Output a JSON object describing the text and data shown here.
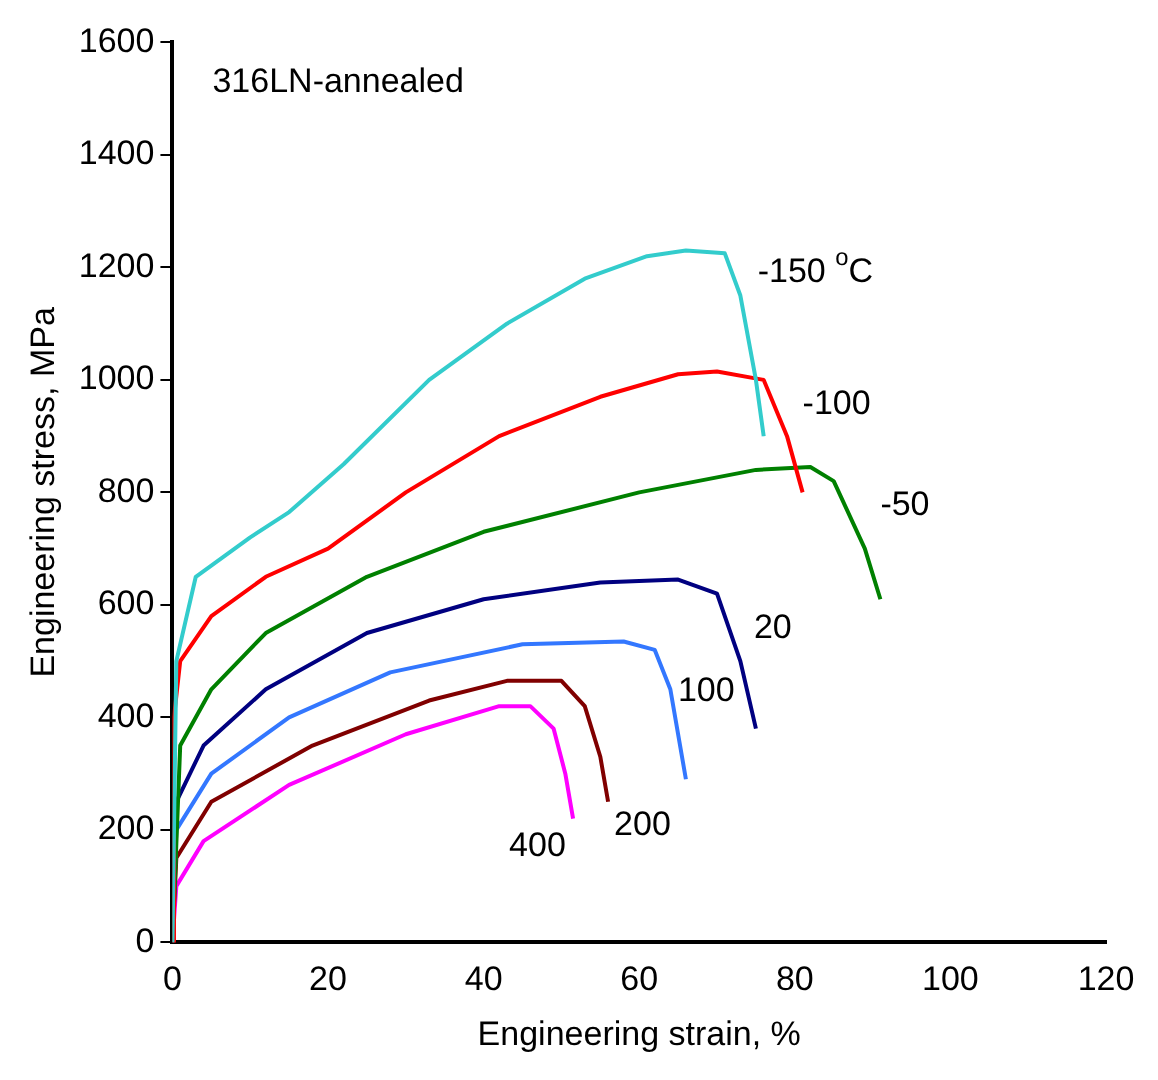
{
  "chart_data": {
    "type": "line",
    "xlabel": "Engineering strain, %",
    "ylabel": "Engineering stress, MPa",
    "xlim": [
      0,
      120
    ],
    "xticks": [
      0,
      20,
      40,
      60,
      80,
      100,
      120
    ],
    "ylim": [
      0,
      1600
    ],
    "yticks": [
      0,
      200,
      400,
      600,
      800,
      1000,
      1200,
      1400,
      1600
    ],
    "grid": false,
    "legend": false,
    "marker": "none",
    "line_style": "solid",
    "series": [
      {
        "name": "-150 $^{o}$C",
        "color": "#33cccc",
        "x": [
          0,
          0.5,
          3,
          10,
          15,
          22,
          33,
          43,
          53,
          61,
          66,
          71,
          73,
          75,
          76
        ],
        "values": [
          0,
          500,
          650,
          720,
          765,
          850,
          1000,
          1100,
          1180,
          1220,
          1230,
          1225,
          1150,
          1000,
          900
        ]
      },
      {
        "name": "-100",
        "color": "#ff0000",
        "x": [
          0,
          0.2,
          1,
          5,
          12,
          20,
          30,
          42,
          55,
          65,
          70,
          76,
          79,
          81
        ],
        "values": [
          0,
          400,
          500,
          580,
          650,
          700,
          800,
          900,
          970,
          1010,
          1015,
          1000,
          900,
          800
        ]
      },
      {
        "name": "-50",
        "color": "#008000",
        "x": [
          0,
          1,
          5,
          12,
          25,
          40,
          60,
          75,
          82,
          85,
          89,
          91
        ],
        "values": [
          0,
          350,
          450,
          550,
          650,
          730,
          800,
          840,
          845,
          820,
          700,
          610
        ]
      },
      {
        "name": "20",
        "color": "#000080",
        "x": [
          0,
          0.5,
          4,
          12,
          25,
          40,
          55,
          65,
          70,
          73,
          75
        ],
        "values": [
          0,
          250,
          350,
          450,
          550,
          610,
          640,
          645,
          620,
          500,
          380
        ]
      },
      {
        "name": "100",
        "color": "#3377ff",
        "x": [
          0,
          0.5,
          5,
          15,
          28,
          45,
          58,
          62,
          64,
          66
        ],
        "values": [
          0,
          200,
          300,
          400,
          480,
          530,
          535,
          520,
          450,
          290
        ]
      },
      {
        "name": "200",
        "color": "#800000",
        "x": [
          0,
          0.5,
          5,
          18,
          33,
          43,
          50,
          53,
          55,
          56
        ],
        "values": [
          0,
          150,
          250,
          350,
          430,
          465,
          465,
          420,
          330,
          250
        ]
      },
      {
        "name": "400",
        "color": "#ff00ff",
        "x": [
          0,
          0.5,
          4,
          15,
          30,
          42,
          46,
          49,
          50.5,
          51.5
        ],
        "values": [
          0,
          100,
          180,
          280,
          370,
          420,
          420,
          380,
          300,
          220
        ]
      }
    ],
    "annotations": [
      "316LN-annealed"
    ]
  }
}
